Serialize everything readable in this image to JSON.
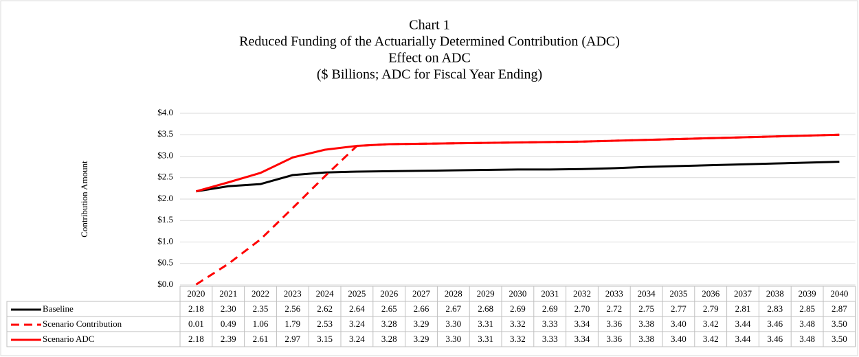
{
  "chart_data": {
    "type": "line",
    "title": "Chart 1",
    "subtitle": [
      "Reduced Funding of the Actuarially Determined Contribution (ADC)",
      "Effect on ADC",
      "($ Billions;  ADC for Fiscal Year Ending)"
    ],
    "y_label": "Contribution Amount",
    "categories": [
      "2020",
      "2021",
      "2022",
      "2023",
      "2024",
      "2025",
      "2026",
      "2027",
      "2028",
      "2029",
      "2030",
      "2031",
      "2032",
      "2033",
      "2034",
      "2035",
      "2036",
      "2037",
      "2038",
      "2039",
      "2040"
    ],
    "series": [
      {
        "name": "Baseline",
        "color": "#000000",
        "dash": false,
        "values": [
          2.18,
          2.3,
          2.35,
          2.56,
          2.62,
          2.64,
          2.65,
          2.66,
          2.67,
          2.68,
          2.69,
          2.69,
          2.7,
          2.72,
          2.75,
          2.77,
          2.79,
          2.81,
          2.83,
          2.85,
          2.87
        ],
        "value_labels": [
          "2.18",
          "2.30",
          "2.35",
          "2.56",
          "2.62",
          "2.64",
          "2.65",
          "2.66",
          "2.67",
          "2.68",
          "2.69",
          "2.69",
          "2.70",
          "2.72",
          "2.75",
          "2.77",
          "2.79",
          "2.81",
          "2.83",
          "2.85",
          "2.87"
        ]
      },
      {
        "name": "Scenario Contribution",
        "color": "#ff0000",
        "dash": true,
        "values": [
          0.01,
          0.49,
          1.06,
          1.79,
          2.53,
          3.24,
          3.28,
          3.29,
          3.3,
          3.31,
          3.32,
          3.33,
          3.34,
          3.36,
          3.38,
          3.4,
          3.42,
          3.44,
          3.46,
          3.48,
          3.5
        ],
        "value_labels": [
          "0.01",
          "0.49",
          "1.06",
          "1.79",
          "2.53",
          "3.24",
          "3.28",
          "3.29",
          "3.30",
          "3.31",
          "3.32",
          "3.33",
          "3.34",
          "3.36",
          "3.38",
          "3.40",
          "3.42",
          "3.44",
          "3.46",
          "3.48",
          "3.50"
        ]
      },
      {
        "name": "Scenario ADC",
        "color": "#ff0000",
        "dash": false,
        "values": [
          2.18,
          2.39,
          2.61,
          2.97,
          3.15,
          3.24,
          3.28,
          3.29,
          3.3,
          3.31,
          3.32,
          3.33,
          3.34,
          3.36,
          3.38,
          3.4,
          3.42,
          3.44,
          3.46,
          3.48,
          3.5
        ],
        "value_labels": [
          "2.18",
          "2.39",
          "2.61",
          "2.97",
          "3.15",
          "3.24",
          "3.28",
          "3.29",
          "3.30",
          "3.31",
          "3.32",
          "3.33",
          "3.34",
          "3.36",
          "3.38",
          "3.40",
          "3.42",
          "3.44",
          "3.46",
          "3.48",
          "3.50"
        ]
      }
    ],
    "ylim": [
      0,
      4
    ],
    "yticks": [
      {
        "value": 0,
        "label": "$0.0"
      },
      {
        "value": 0.5,
        "label": "$0.5"
      },
      {
        "value": 1,
        "label": "$1.0"
      },
      {
        "value": 1.5,
        "label": "$1.5"
      },
      {
        "value": 2,
        "label": "$2.0"
      },
      {
        "value": 2.5,
        "label": "$2.5"
      },
      {
        "value": 3,
        "label": "$3.0"
      },
      {
        "value": 3.5,
        "label": "$3.5"
      },
      {
        "value": 4,
        "label": "$4.0"
      }
    ],
    "grid": true
  }
}
